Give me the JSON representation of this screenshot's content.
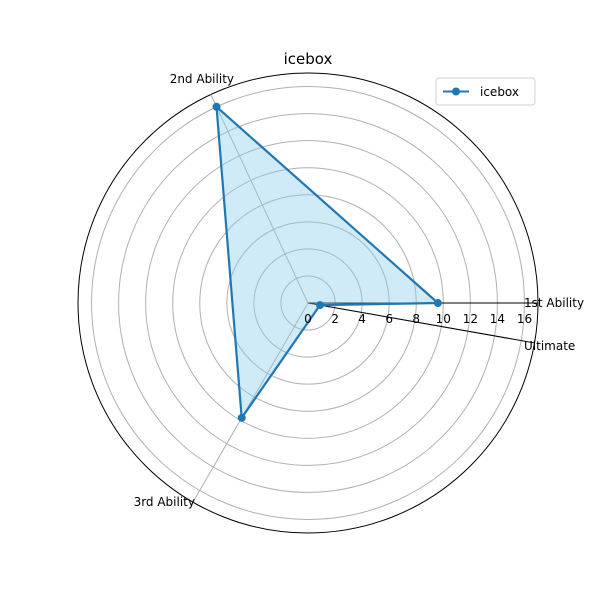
{
  "chart_data": {
    "type": "radar",
    "title": "icebox",
    "categories": [
      "1st Ability",
      "2nd Ability",
      "3rd Ability",
      "Ultimate"
    ],
    "series": [
      {
        "name": "icebox",
        "values": [
          9.6,
          16.0,
          9.8,
          0.9
        ]
      }
    ],
    "rlim": [
      0,
      17
    ],
    "r_ticks": [
      0,
      2,
      4,
      6,
      8,
      10,
      12,
      14,
      16
    ],
    "grid": true,
    "legend_position": "top-right",
    "colors": {
      "line": "#1f77b4",
      "fill": "#87ceeb",
      "grid": "#b0b0b0",
      "axis": "#000000"
    }
  }
}
